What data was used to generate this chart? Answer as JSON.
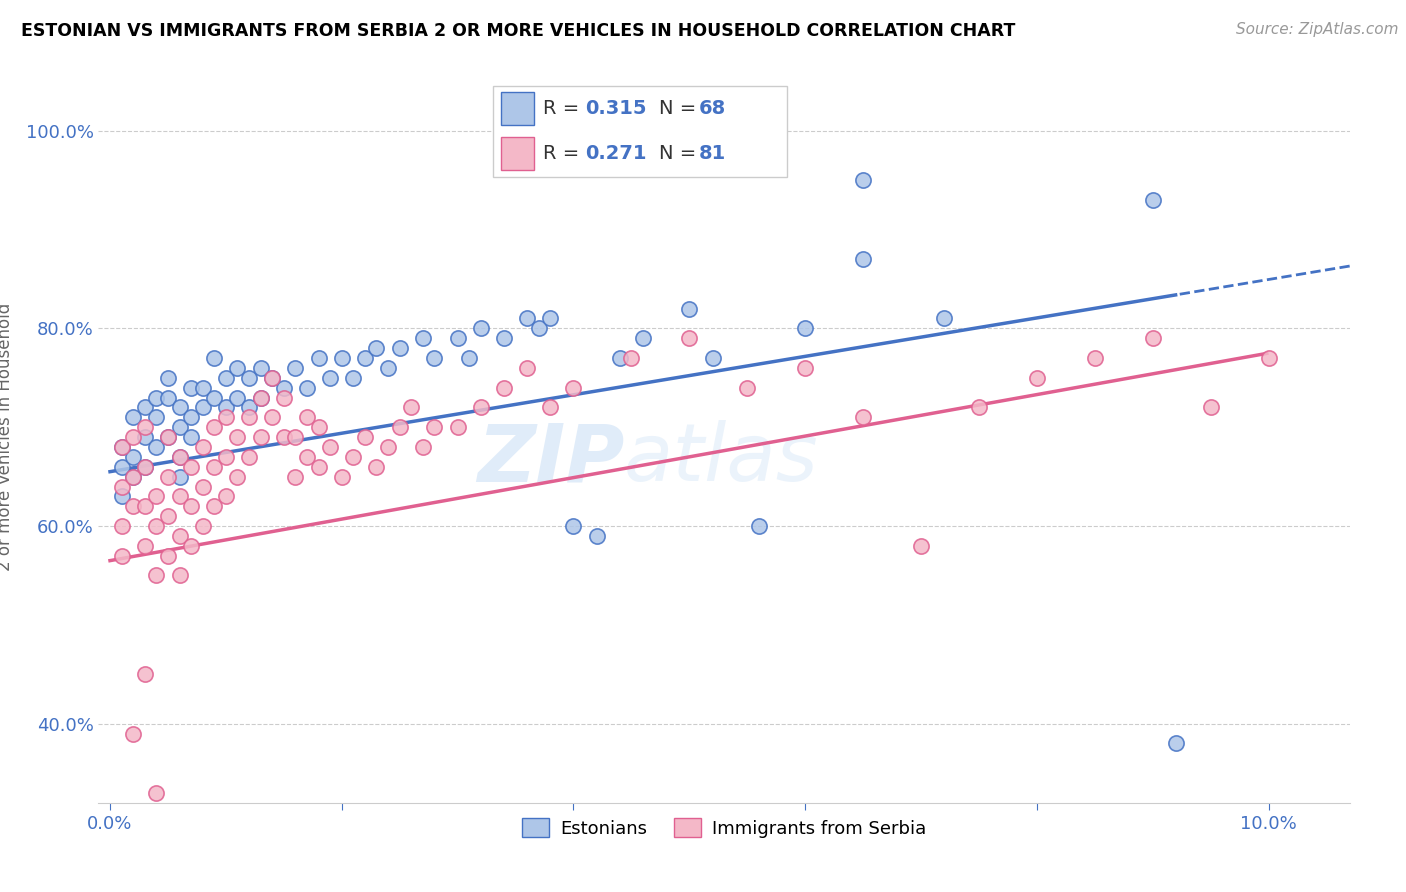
{
  "title": "ESTONIAN VS IMMIGRANTS FROM SERBIA 2 OR MORE VEHICLES IN HOUSEHOLD CORRELATION CHART",
  "source": "Source: ZipAtlas.com",
  "ylabel": "2 or more Vehicles in Household",
  "ylim": [
    0.32,
    1.06
  ],
  "xlim": [
    -0.001,
    0.107
  ],
  "y_ticks": [
    0.4,
    0.6,
    0.8,
    1.0
  ],
  "y_tick_labels": [
    "40.0%",
    "60.0%",
    "80.0%",
    "100.0%"
  ],
  "color_estonian": "#aec6e8",
  "color_serbia": "#f4b8c8",
  "line_color_estonian": "#4472c4",
  "line_color_serbia": "#e06090",
  "watermark_zip": "ZIP",
  "watermark_atlas": "atlas",
  "estonian_x": [
    0.001,
    0.001,
    0.001,
    0.002,
    0.002,
    0.002,
    0.003,
    0.003,
    0.003,
    0.004,
    0.004,
    0.004,
    0.005,
    0.005,
    0.005,
    0.006,
    0.006,
    0.006,
    0.006,
    0.007,
    0.007,
    0.007,
    0.008,
    0.008,
    0.009,
    0.009,
    0.01,
    0.01,
    0.011,
    0.011,
    0.012,
    0.012,
    0.013,
    0.013,
    0.014,
    0.015,
    0.016,
    0.017,
    0.018,
    0.019,
    0.02,
    0.021,
    0.022,
    0.023,
    0.024,
    0.025,
    0.027,
    0.028,
    0.03,
    0.031,
    0.032,
    0.034,
    0.036,
    0.037,
    0.038,
    0.04,
    0.042,
    0.044,
    0.046,
    0.05,
    0.052,
    0.056,
    0.06,
    0.065,
    0.072,
    0.09,
    0.092,
    0.065
  ],
  "estonian_y": [
    0.63,
    0.66,
    0.68,
    0.65,
    0.67,
    0.71,
    0.69,
    0.72,
    0.66,
    0.73,
    0.71,
    0.68,
    0.75,
    0.73,
    0.69,
    0.72,
    0.7,
    0.67,
    0.65,
    0.74,
    0.71,
    0.69,
    0.74,
    0.72,
    0.77,
    0.73,
    0.75,
    0.72,
    0.76,
    0.73,
    0.75,
    0.72,
    0.76,
    0.73,
    0.75,
    0.74,
    0.76,
    0.74,
    0.77,
    0.75,
    0.77,
    0.75,
    0.77,
    0.78,
    0.76,
    0.78,
    0.79,
    0.77,
    0.79,
    0.77,
    0.8,
    0.79,
    0.81,
    0.8,
    0.81,
    0.6,
    0.59,
    0.77,
    0.79,
    0.82,
    0.77,
    0.6,
    0.8,
    0.95,
    0.81,
    0.93,
    0.38,
    0.87
  ],
  "serbia_x": [
    0.001,
    0.001,
    0.001,
    0.001,
    0.002,
    0.002,
    0.002,
    0.003,
    0.003,
    0.003,
    0.003,
    0.004,
    0.004,
    0.004,
    0.005,
    0.005,
    0.005,
    0.005,
    0.006,
    0.006,
    0.006,
    0.006,
    0.007,
    0.007,
    0.007,
    0.008,
    0.008,
    0.008,
    0.009,
    0.009,
    0.009,
    0.01,
    0.01,
    0.01,
    0.011,
    0.011,
    0.012,
    0.012,
    0.013,
    0.013,
    0.014,
    0.014,
    0.015,
    0.015,
    0.016,
    0.016,
    0.017,
    0.017,
    0.018,
    0.018,
    0.019,
    0.02,
    0.021,
    0.022,
    0.023,
    0.024,
    0.025,
    0.026,
    0.027,
    0.028,
    0.03,
    0.032,
    0.034,
    0.036,
    0.038,
    0.04,
    0.045,
    0.05,
    0.055,
    0.06,
    0.065,
    0.07,
    0.075,
    0.08,
    0.085,
    0.09,
    0.095,
    0.1,
    0.003,
    0.002,
    0.004
  ],
  "serbia_y": [
    0.57,
    0.6,
    0.64,
    0.68,
    0.62,
    0.65,
    0.69,
    0.58,
    0.62,
    0.66,
    0.7,
    0.55,
    0.6,
    0.63,
    0.57,
    0.61,
    0.65,
    0.69,
    0.55,
    0.59,
    0.63,
    0.67,
    0.58,
    0.62,
    0.66,
    0.6,
    0.64,
    0.68,
    0.62,
    0.66,
    0.7,
    0.63,
    0.67,
    0.71,
    0.65,
    0.69,
    0.67,
    0.71,
    0.69,
    0.73,
    0.71,
    0.75,
    0.69,
    0.73,
    0.65,
    0.69,
    0.67,
    0.71,
    0.66,
    0.7,
    0.68,
    0.65,
    0.67,
    0.69,
    0.66,
    0.68,
    0.7,
    0.72,
    0.68,
    0.7,
    0.7,
    0.72,
    0.74,
    0.76,
    0.72,
    0.74,
    0.77,
    0.79,
    0.74,
    0.76,
    0.71,
    0.58,
    0.72,
    0.75,
    0.77,
    0.79,
    0.72,
    0.77,
    0.45,
    0.39,
    0.33
  ]
}
